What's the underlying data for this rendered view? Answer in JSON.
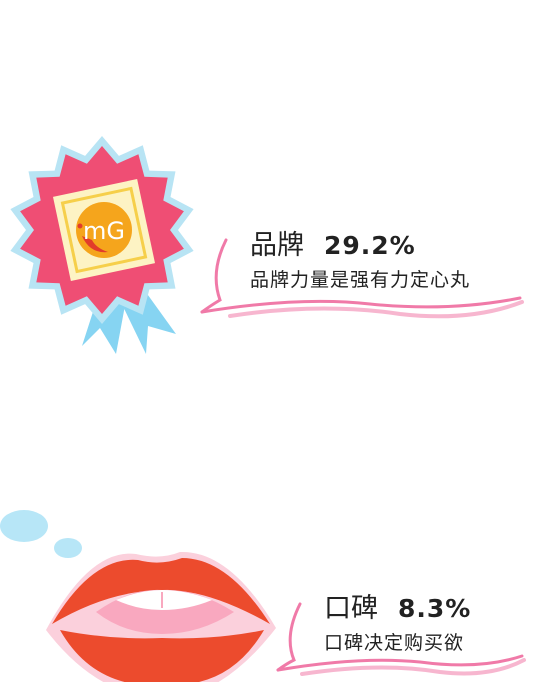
{
  "items": [
    {
      "label": "品牌",
      "percent": "29.2%",
      "subtitle": "品牌力量是强有力定心丸",
      "icon": "award-badge-icon"
    },
    {
      "label": "口碑",
      "percent": "8.3%",
      "subtitle": "口碑决定购买欲",
      "icon": "lips-icon"
    }
  ],
  "badge": {
    "logo_text": "mG"
  },
  "colors": {
    "badge_outer": "#b8e4f4",
    "badge_main": "#ef4e74",
    "badge_frame": "#fdf3c4",
    "badge_circle": "#f5a51c",
    "ribbon": "#86d4f2",
    "bubble_stroke": "#f07aa8",
    "lips": "#ec4b2d",
    "lips_inner": "#f9a8bf",
    "dots": "#b7e6f7"
  }
}
